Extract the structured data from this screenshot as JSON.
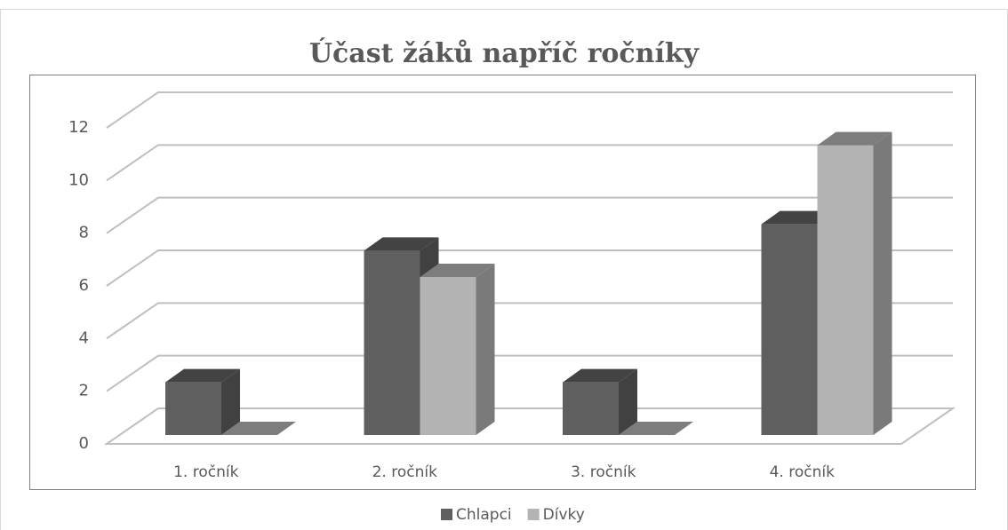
{
  "chart_data": {
    "type": "bar3d",
    "title": "Účast žáků napříč ročníky",
    "categories": [
      "1. ročník",
      "2. ročník",
      "3. ročník",
      "4. ročník"
    ],
    "series": [
      {
        "name": "Chlapci",
        "color": "#5f5f5f",
        "values": [
          2,
          7,
          2,
          8
        ]
      },
      {
        "name": "Dívky",
        "color": "#b3b3b3",
        "values": [
          0,
          6,
          0,
          11
        ]
      }
    ],
    "ylim": [
      0,
      12
    ],
    "yticks": [
      0,
      2,
      4,
      6,
      8,
      10,
      12
    ],
    "grid": true,
    "legend": "bottom"
  }
}
